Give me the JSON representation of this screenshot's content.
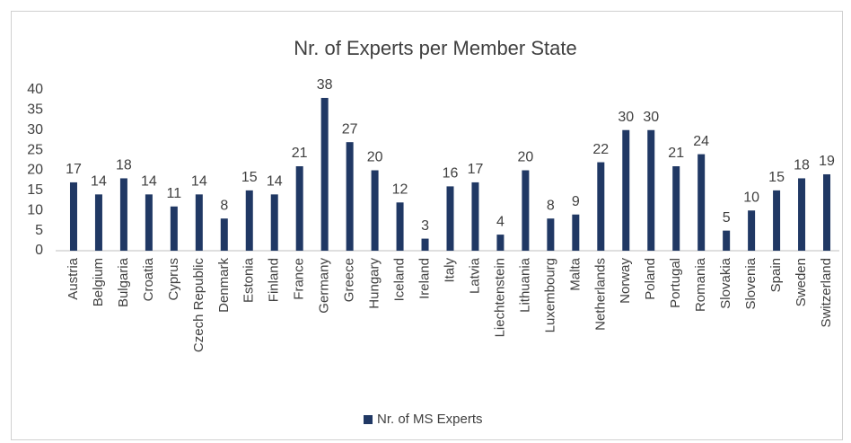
{
  "chart_data": {
    "type": "bar",
    "title": "Nr. of Experts per Member State",
    "categories": [
      "Austria",
      "Belgium",
      "Bulgaria",
      "Croatia",
      "Cyprus",
      "Czech Republic",
      "Denmark",
      "Estonia",
      "Finland",
      "France",
      "Germany",
      "Greece",
      "Hungary",
      "Iceland",
      "Ireland",
      "Italy",
      "Latvia",
      "Liechtenstein",
      "Lithuania",
      "Luxembourg",
      "Malta",
      "Netherlands",
      "Norway",
      "Poland",
      "Portugal",
      "Romania",
      "Slovakia",
      "Slovenia",
      "Spain",
      "Sweden",
      "Switzerland"
    ],
    "series": [
      {
        "name": "Nr. of MS Experts",
        "color": "#203864",
        "values": [
          17,
          14,
          18,
          14,
          11,
          14,
          8,
          15,
          14,
          21,
          38,
          27,
          20,
          12,
          3,
          16,
          17,
          4,
          20,
          8,
          9,
          22,
          30,
          30,
          21,
          24,
          5,
          10,
          15,
          18,
          19
        ]
      }
    ],
    "ylim": [
      0,
      40
    ],
    "yticks": [
      0,
      5,
      10,
      15,
      20,
      25,
      30,
      35,
      40
    ],
    "grid": false,
    "legend": "bottom"
  }
}
